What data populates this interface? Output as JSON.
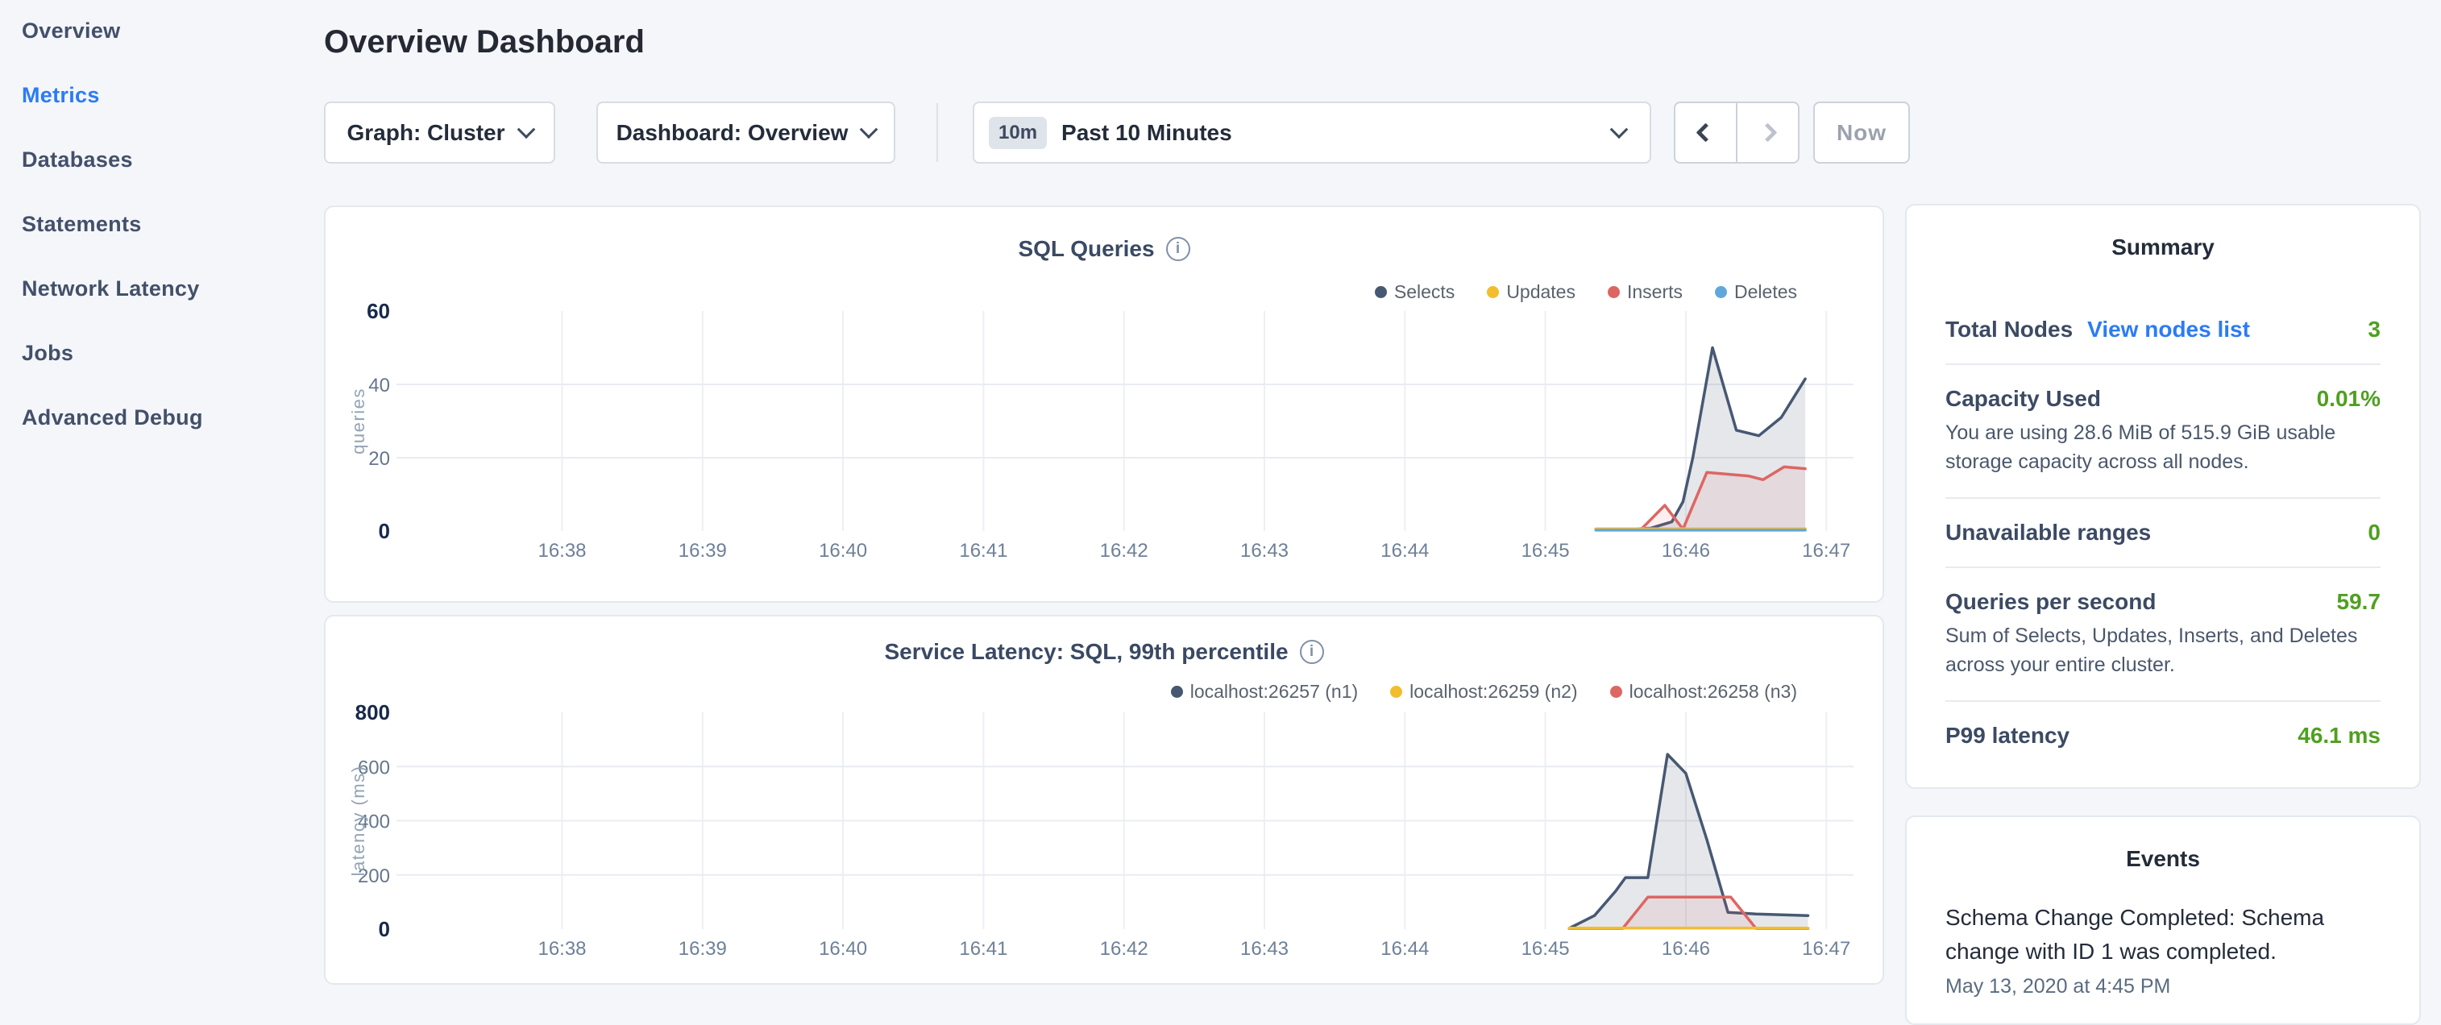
{
  "sidebar": {
    "items": [
      {
        "label": "Overview",
        "active": false
      },
      {
        "label": "Metrics",
        "active": true
      },
      {
        "label": "Databases",
        "active": false
      },
      {
        "label": "Statements",
        "active": false
      },
      {
        "label": "Network Latency",
        "active": false
      },
      {
        "label": "Jobs",
        "active": false
      },
      {
        "label": "Advanced Debug",
        "active": false
      }
    ]
  },
  "header": {
    "title": "Overview Dashboard"
  },
  "controls": {
    "graph_dropdown": "Graph: Cluster",
    "dashboard_dropdown": "Dashboard: Overview",
    "time_badge": "10m",
    "time_label": "Past 10 Minutes",
    "prev_label": "previous time window",
    "next_label": "next time window",
    "now_label": "Now"
  },
  "chart_data": [
    {
      "type": "area",
      "title": "SQL Queries",
      "ylabel": "queries",
      "xlabel": "",
      "x_tick_labels": [
        "16:38",
        "16:39",
        "16:40",
        "16:41",
        "16:42",
        "16:43",
        "16:44",
        "16:45",
        "16:46",
        "16:47"
      ],
      "ylim": [
        0,
        60
      ],
      "y_ticks": [
        0,
        20,
        40,
        60
      ],
      "y_gridlines": [
        20,
        40
      ],
      "legend_position": "top-right",
      "grid": true,
      "series": [
        {
          "name": "Selects",
          "color": "#475872",
          "fill": "rgba(71,88,114,0.14)",
          "points": [
            [
              7.36,
              0.4
            ],
            [
              7.6,
              0.5
            ],
            [
              7.75,
              0.8
            ],
            [
              7.9,
              2.5
            ],
            [
              7.98,
              8
            ],
            [
              8.05,
              20
            ],
            [
              8.19,
              50
            ],
            [
              8.36,
              27.5
            ],
            [
              8.52,
              26
            ],
            [
              8.68,
              31
            ],
            [
              8.85,
              41.5
            ]
          ]
        },
        {
          "name": "Updates",
          "color": "#f2be2d",
          "fill": "none",
          "points": [
            [
              7.36,
              0.6
            ],
            [
              8.85,
              0.6
            ]
          ]
        },
        {
          "name": "Inserts",
          "color": "#dd6662",
          "fill": "rgba(221,102,98,0.10)",
          "points": [
            [
              7.36,
              0.3
            ],
            [
              7.68,
              0.4
            ],
            [
              7.85,
              7
            ],
            [
              7.98,
              0.5
            ],
            [
              8.15,
              16
            ],
            [
              8.3,
              15.5
            ],
            [
              8.45,
              15
            ],
            [
              8.55,
              14
            ],
            [
              8.7,
              17.5
            ],
            [
              8.85,
              17
            ]
          ]
        },
        {
          "name": "Deletes",
          "color": "#62a7db",
          "fill": "none",
          "points": [
            [
              7.36,
              0.25
            ],
            [
              8.85,
              0.25
            ]
          ]
        }
      ]
    },
    {
      "type": "area",
      "title": "Service Latency: SQL, 99th percentile",
      "ylabel": "latency (ms)",
      "xlabel": "",
      "x_tick_labels": [
        "16:38",
        "16:39",
        "16:40",
        "16:41",
        "16:42",
        "16:43",
        "16:44",
        "16:45",
        "16:46",
        "16:47"
      ],
      "ylim": [
        0,
        800
      ],
      "y_ticks": [
        0,
        200,
        400,
        600,
        800
      ],
      "y_gridlines": [
        200,
        400,
        600
      ],
      "legend_position": "top-right",
      "grid": true,
      "series": [
        {
          "name": "localhost:26257 (n1)",
          "color": "#475872",
          "fill": "rgba(71,88,114,0.14)",
          "points": [
            [
              7.17,
              3
            ],
            [
              7.35,
              50
            ],
            [
              7.5,
              140
            ],
            [
              7.57,
              190
            ],
            [
              7.73,
              190
            ],
            [
              7.87,
              645
            ],
            [
              8.0,
              575
            ],
            [
              8.15,
              330
            ],
            [
              8.3,
              62
            ],
            [
              8.5,
              56
            ],
            [
              8.87,
              50
            ]
          ]
        },
        {
          "name": "localhost:26259 (n2)",
          "color": "#f2be2d",
          "fill": "none",
          "points": [
            [
              7.17,
              4
            ],
            [
              8.87,
              4
            ]
          ]
        },
        {
          "name": "localhost:26258 (n3)",
          "color": "#dd6662",
          "fill": "rgba(221,102,98,0.10)",
          "points": [
            [
              7.17,
              2
            ],
            [
              7.55,
              2
            ],
            [
              7.73,
              118
            ],
            [
              8.32,
              118
            ],
            [
              8.5,
              2
            ],
            [
              8.87,
              2
            ]
          ]
        }
      ]
    }
  ],
  "summary": {
    "title": "Summary",
    "value_color": "#4fa01f",
    "link_color": "#2b7bf6",
    "rows": [
      {
        "label": "Total Nodes",
        "link": "View nodes list",
        "value": "3"
      },
      {
        "label": "Capacity Used",
        "value": "0.01%",
        "subtext": "You are using 28.6 MiB of 515.9 GiB usable storage capacity across all nodes."
      },
      {
        "label": "Unavailable ranges",
        "value": "0"
      },
      {
        "label": "Queries per second",
        "value": "59.7",
        "subtext": "Sum of Selects, Updates, Inserts, and Deletes across your entire cluster."
      },
      {
        "label": "P99 latency",
        "value": "46.1 ms"
      }
    ]
  },
  "events": {
    "title": "Events",
    "items": [
      {
        "message": "Schema Change Completed: Schema change with ID 1 was completed.",
        "time": "May 13, 2020 at 4:45 PM"
      }
    ]
  }
}
